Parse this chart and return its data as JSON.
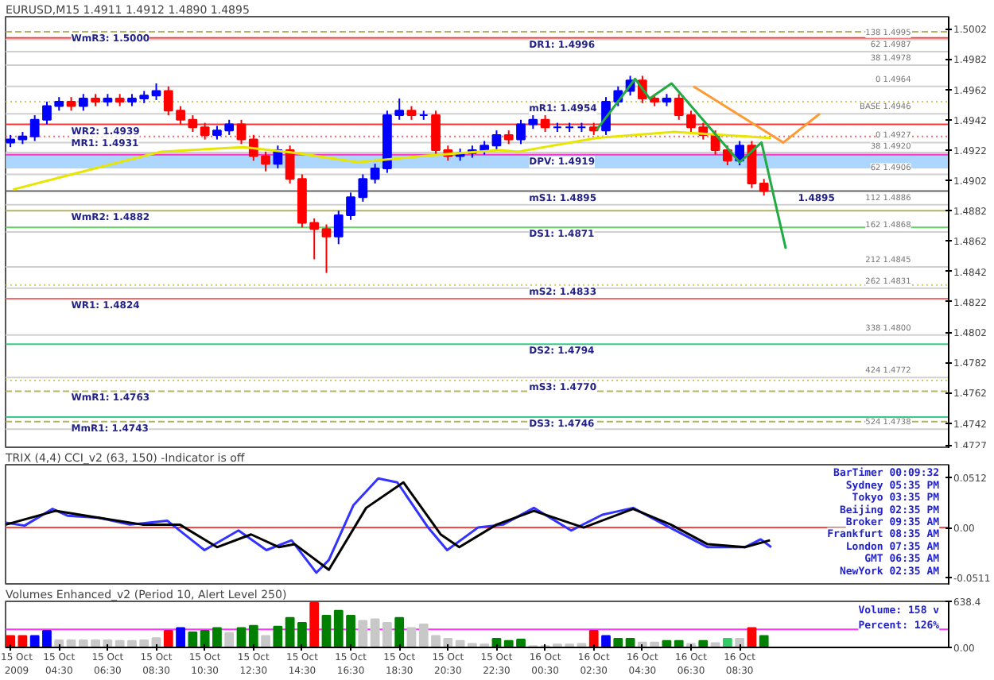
{
  "chart_data": [
    {
      "type": "candlestick",
      "title": "EURUSD,M15 1.4911 1.4912 1.4890 1.4895",
      "x": [
        "2009-10-15T02:30",
        "2009-10-15T03:00",
        "2009-10-15T03:30",
        "2009-10-15T04:00",
        "2009-10-15T04:30",
        "2009-10-15T05:00",
        "2009-10-15T05:30",
        "2009-10-15T06:00",
        "2009-10-15T06:30",
        "2009-10-15T07:00",
        "2009-10-15T07:30",
        "2009-10-15T08:00",
        "2009-10-15T08:30",
        "2009-10-15T09:00",
        "2009-10-15T09:30",
        "2009-10-15T10:00",
        "2009-10-15T10:30",
        "2009-10-15T11:00",
        "2009-10-15T11:30",
        "2009-10-15T12:00",
        "2009-10-15T12:30",
        "2009-10-15T13:00",
        "2009-10-15T13:30",
        "2009-10-15T14:00",
        "2009-10-15T14:30",
        "2009-10-15T15:00",
        "2009-10-15T15:30",
        "2009-10-15T16:00",
        "2009-10-15T16:30",
        "2009-10-15T17:00",
        "2009-10-15T17:30",
        "2009-10-15T18:00",
        "2009-10-15T18:30",
        "2009-10-15T19:00",
        "2009-10-15T19:30",
        "2009-10-15T20:00",
        "2009-10-15T20:30",
        "2009-10-15T21:00",
        "2009-10-15T21:30",
        "2009-10-15T22:00",
        "2009-10-15T22:30",
        "2009-10-15T23:00",
        "2009-10-15T23:30",
        "2009-10-16T00:00",
        "2009-10-16T00:30",
        "2009-10-16T01:00",
        "2009-10-16T01:30",
        "2009-10-16T02:00",
        "2009-10-16T02:30",
        "2009-10-16T03:00",
        "2009-10-16T03:30",
        "2009-10-16T04:00",
        "2009-10-16T04:30",
        "2009-10-16T05:00",
        "2009-10-16T05:30",
        "2009-10-16T06:00",
        "2009-10-16T06:30",
        "2009-10-16T07:00",
        "2009-10-16T07:30",
        "2009-10-16T08:00",
        "2009-10-16T08:30",
        "2009-10-16T09:00",
        "2009-10-16T09:30"
      ],
      "ohlc": [
        [
          1.4927,
          1.4932,
          1.4924,
          1.4929
        ],
        [
          1.4929,
          1.4934,
          1.4926,
          1.4931
        ],
        [
          1.4931,
          1.4945,
          1.4928,
          1.4942
        ],
        [
          1.4942,
          1.4954,
          1.4939,
          1.4951
        ],
        [
          1.4951,
          1.4957,
          1.4948,
          1.4954
        ],
        [
          1.4954,
          1.4957,
          1.4948,
          1.4951
        ],
        [
          1.4951,
          1.4959,
          1.4948,
          1.4956
        ],
        [
          1.4956,
          1.4959,
          1.4951,
          1.4954
        ],
        [
          1.4954,
          1.4959,
          1.4951,
          1.4956
        ],
        [
          1.4956,
          1.4959,
          1.4951,
          1.4954
        ],
        [
          1.4954,
          1.4959,
          1.4951,
          1.4956
        ],
        [
          1.4956,
          1.4961,
          1.4953,
          1.4958
        ],
        [
          1.4958,
          1.4966,
          1.4955,
          1.4961
        ],
        [
          1.4961,
          1.4964,
          1.4945,
          1.4948
        ],
        [
          1.4948,
          1.4951,
          1.4939,
          1.4942
        ],
        [
          1.4942,
          1.4945,
          1.4934,
          1.4937
        ],
        [
          1.4937,
          1.494,
          1.4929,
          1.4932
        ],
        [
          1.4932,
          1.4938,
          1.4929,
          1.4935
        ],
        [
          1.4935,
          1.4942,
          1.4932,
          1.4939
        ],
        [
          1.4939,
          1.4942,
          1.4926,
          1.4929
        ],
        [
          1.4929,
          1.4932,
          1.4915,
          1.4918
        ],
        [
          1.4918,
          1.4921,
          1.4908,
          1.4913
        ],
        [
          1.4913,
          1.4925,
          1.491,
          1.4922
        ],
        [
          1.4922,
          1.4925,
          1.49,
          1.4903
        ],
        [
          1.4903,
          1.4906,
          1.4871,
          1.4874
        ],
        [
          1.4874,
          1.4877,
          1.485,
          1.487
        ],
        [
          1.487,
          1.4873,
          1.4841,
          1.4865
        ],
        [
          1.4865,
          1.4882,
          1.486,
          1.4879
        ],
        [
          1.4879,
          1.4894,
          1.4876,
          1.4891
        ],
        [
          1.4891,
          1.4906,
          1.4888,
          1.4903
        ],
        [
          1.4903,
          1.4913,
          1.49,
          1.491
        ],
        [
          1.491,
          1.4948,
          1.4907,
          1.4945
        ],
        [
          1.4945,
          1.4956,
          1.4942,
          1.4948
        ],
        [
          1.4948,
          1.4951,
          1.4942,
          1.4945
        ],
        [
          1.4945,
          1.4948,
          1.4942,
          1.4945
        ],
        [
          1.4945,
          1.4948,
          1.4919,
          1.4922
        ],
        [
          1.4922,
          1.4925,
          1.4915,
          1.4918
        ],
        [
          1.4918,
          1.4923,
          1.4915,
          1.492
        ],
        [
          1.492,
          1.4925,
          1.4917,
          1.4922
        ],
        [
          1.4922,
          1.4928,
          1.4919,
          1.4925
        ],
        [
          1.4925,
          1.4935,
          1.4922,
          1.4932
        ],
        [
          1.4932,
          1.4935,
          1.4926,
          1.4929
        ],
        [
          1.4929,
          1.4942,
          1.4926,
          1.4939
        ],
        [
          1.4939,
          1.4945,
          1.4936,
          1.4942
        ],
        [
          1.4942,
          1.4945,
          1.4934,
          1.4937
        ],
        [
          1.4937,
          1.494,
          1.4934,
          1.4937
        ],
        [
          1.4937,
          1.494,
          1.4934,
          1.4937
        ],
        [
          1.4937,
          1.494,
          1.4934,
          1.4937
        ],
        [
          1.4937,
          1.494,
          1.4932,
          1.4935
        ],
        [
          1.4935,
          1.4957,
          1.4932,
          1.4954
        ],
        [
          1.4954,
          1.4964,
          1.4951,
          1.4961
        ],
        [
          1.4961,
          1.4971,
          1.4958,
          1.4968
        ],
        [
          1.4968,
          1.4971,
          1.4953,
          1.4956
        ],
        [
          1.4956,
          1.4959,
          1.4951,
          1.4954
        ],
        [
          1.4954,
          1.4959,
          1.4951,
          1.4956
        ],
        [
          1.4956,
          1.4959,
          1.4942,
          1.4945
        ],
        [
          1.4945,
          1.4948,
          1.4934,
          1.4937
        ],
        [
          1.4937,
          1.494,
          1.4929,
          1.4932
        ],
        [
          1.4932,
          1.4935,
          1.4919,
          1.4922
        ],
        [
          1.4922,
          1.4925,
          1.4912,
          1.4915
        ],
        [
          1.4915,
          1.4928,
          1.4912,
          1.4925
        ],
        [
          1.4925,
          1.4928,
          1.4897,
          1.49
        ],
        [
          1.49,
          1.4903,
          1.4892,
          1.4895
        ]
      ],
      "colors": [
        "#0000ff",
        "#0000ff",
        "#0000ff",
        "#0000ff",
        "#0000ff",
        "#ff0000",
        "#0000ff",
        "#ff0000",
        "#0000ff",
        "#ff0000",
        "#0000ff",
        "#0000ff",
        "#0000ff",
        "#ff0000",
        "#ff0000",
        "#ff0000",
        "#ff0000",
        "#0000ff",
        "#0000ff",
        "#ff0000",
        "#ff0000",
        "#ff0000",
        "#0000ff",
        "#ff0000",
        "#ff0000",
        "#ff0000",
        "#ff0000",
        "#0000ff",
        "#0000ff",
        "#0000ff",
        "#0000ff",
        "#0000ff",
        "#0000ff",
        "#ff0000",
        "#0000ff",
        "#ff0000",
        "#ff0000",
        "#0000ff",
        "#0000ff",
        "#0000ff",
        "#0000ff",
        "#ff0000",
        "#0000ff",
        "#0000ff",
        "#ff0000",
        "#0000ff",
        "#0000ff",
        "#0000ff",
        "#ff0000",
        "#0000ff",
        "#0000ff",
        "#0000ff",
        "#ff0000",
        "#ff0000",
        "#0000ff",
        "#ff0000",
        "#ff0000",
        "#ff0000",
        "#ff0000",
        "#ff0000",
        "#0000ff",
        "#ff0000",
        "#ff0000"
      ],
      "series": [
        {
          "type": "line",
          "color": "#e6e600",
          "x": [
            "2009-10-15T02:36",
            "2009-10-15T05:30",
            "2009-10-15T08:42",
            "2009-10-15T12:06",
            "2009-10-15T14:18",
            "2009-10-15T16:48",
            "2009-10-15T19:24",
            "2009-10-15T22:36",
            "2009-10-15T23:24",
            "2009-10-16T02:36",
            "2009-10-16T05:48",
            "2009-10-16T09:48"
          ],
          "values": [
            1.4896,
            1.4908,
            1.4921,
            1.4924,
            1.492,
            1.4914,
            1.4918,
            1.4922,
            1.4921,
            1.493,
            1.4934,
            1.493
          ]
        },
        {
          "type": "line",
          "color": "#22aa44",
          "x": [
            "2009-10-16T02:36",
            "2009-10-16T04:12",
            "2009-10-16T04:48",
            "2009-10-16T05:42",
            "2009-10-16T08:30",
            "2009-10-16T09:24",
            "2009-10-16T10:24"
          ],
          "values": [
            1.4935,
            1.4969,
            1.4956,
            1.4966,
            1.4914,
            1.4927,
            1.4857
          ]
        },
        {
          "type": "line",
          "color": "#ff9933",
          "x": [
            "2009-10-16T06:36",
            "2009-10-16T10:18",
            "2009-10-16T11:48"
          ],
          "values": [
            1.4964,
            1.4927,
            1.4946
          ]
        }
      ],
      "xlim": [
        "2009-10-15T02:18",
        "2009-10-16T17:06"
      ],
      "ylim": [
        1.4725,
        1.501
      ],
      "yticks": [
        1.5002,
        1.4982,
        1.4962,
        1.4942,
        1.4922,
        1.4902,
        1.4882,
        1.4862,
        1.4842,
        1.4822,
        1.4802,
        1.4782,
        1.4762,
        1.4742,
        1.4727
      ],
      "tick_labels": "y",
      "bands": [
        {
          "axis": "y",
          "from": 1.491,
          "to": 1.4921,
          "color": "#99ccff"
        }
      ],
      "ref_lines": [
        {
          "axis": "y",
          "value": 1.5,
          "color": "#b3b366",
          "line_style": "dashed"
        },
        {
          "axis": "y",
          "value": 1.4996,
          "color": "#ff3333",
          "line_style": "solid"
        },
        {
          "axis": "y",
          "value": 1.4954,
          "color": "#cccc66",
          "line_style": "dotted"
        },
        {
          "axis": "y",
          "value": 1.4939,
          "color": "#ff3333",
          "line_style": "solid"
        },
        {
          "axis": "y",
          "value": 1.4931,
          "color": "#ff6666",
          "line_style": "dotted"
        },
        {
          "axis": "y",
          "value": 1.4919,
          "color": "#ff33cc",
          "line_style": "solid"
        },
        {
          "axis": "y",
          "value": 1.4895,
          "color": "#666666",
          "line_style": "solid"
        },
        {
          "axis": "y",
          "value": 1.4882,
          "color": "#b3b366",
          "line_style": "solid"
        },
        {
          "axis": "y",
          "value": 1.4871,
          "color": "#66cc66",
          "line_style": "solid"
        },
        {
          "axis": "y",
          "value": 1.4833,
          "color": "#cccc66",
          "line_style": "dotted"
        },
        {
          "axis": "y",
          "value": 1.4824,
          "color": "#ff6666",
          "line_style": "solid"
        },
        {
          "axis": "y",
          "value": 1.4794,
          "color": "#33cc88",
          "line_style": "solid"
        },
        {
          "axis": "y",
          "value": 1.477,
          "color": "#cccc66",
          "line_style": "dotted"
        },
        {
          "axis": "y",
          "value": 1.4763,
          "color": "#b3b366",
          "line_style": "dashed"
        },
        {
          "axis": "y",
          "value": 1.4746,
          "color": "#33cc88",
          "line_style": "solid"
        },
        {
          "axis": "y",
          "value": 1.4743,
          "color": "#b3b366",
          "line_style": "dashed"
        },
        {
          "axis": "y",
          "value": 1.4995,
          "label": "138 1.4995",
          "color": "#d0d0d0",
          "line_style": "solid"
        },
        {
          "axis": "y",
          "value": 1.4987,
          "label": "62 1.4987",
          "color": "#d0d0d0",
          "line_style": "solid"
        },
        {
          "axis": "y",
          "value": 1.4978,
          "label": "38 1.4978",
          "color": "#d0d0d0",
          "line_style": "solid"
        },
        {
          "axis": "y",
          "value": 1.4964,
          "label": "0 1.4964",
          "color": "#d0d0d0",
          "line_style": "solid"
        },
        {
          "axis": "y",
          "value": 1.4946,
          "label": "BASE 1.4946",
          "color": "#d0d0d0",
          "line_style": "solid"
        },
        {
          "axis": "y",
          "value": 1.4927,
          "label": "0 1.4927",
          "color": "#d0d0d0",
          "line_style": "solid"
        },
        {
          "axis": "y",
          "value": 1.492,
          "label": "38 1.4920",
          "color": "#d0d0d0",
          "line_style": "solid"
        },
        {
          "axis": "y",
          "value": 1.4906,
          "label": "62 1.4906",
          "color": "#d0d0d0",
          "line_style": "solid"
        },
        {
          "axis": "y",
          "value": 1.4886,
          "label": "112 1.4886",
          "color": "#d0d0d0",
          "line_style": "solid"
        },
        {
          "axis": "y",
          "value": 1.4868,
          "label": "162 1.4868",
          "color": "#d0d0d0",
          "line_style": "solid"
        },
        {
          "axis": "y",
          "value": 1.4845,
          "label": "212 1.4845",
          "color": "#d0d0d0",
          "line_style": "solid"
        },
        {
          "axis": "y",
          "value": 1.4831,
          "label": "262 1.4831",
          "color": "#d0d0d0",
          "line_style": "solid"
        },
        {
          "axis": "y",
          "value": 1.48,
          "label": "338 1.4800",
          "color": "#d0d0d0",
          "line_style": "solid"
        },
        {
          "axis": "y",
          "value": 1.4772,
          "label": "424 1.4772",
          "color": "#d0d0d0",
          "line_style": "solid"
        },
        {
          "axis": "y",
          "value": 1.4738,
          "label": "524 1.4738",
          "color": "#d0d0d0",
          "line_style": "solid"
        }
      ],
      "annotations": [
        {
          "text": "WmR3: 1.5000",
          "x": "2009-10-15T05:00",
          "y": 1.5
        },
        {
          "text": "WR2: 1.4939",
          "x": "2009-10-15T05:00",
          "y": 1.4939
        },
        {
          "text": "MR1: 1.4931",
          "x": "2009-10-15T05:00",
          "y": 1.4931
        },
        {
          "text": "WmR2: 1.4882",
          "x": "2009-10-15T05:00",
          "y": 1.4882
        },
        {
          "text": "WR1: 1.4824",
          "x": "2009-10-15T05:00",
          "y": 1.4824
        },
        {
          "text": "WmR1: 1.4763",
          "x": "2009-10-15T05:00",
          "y": 1.4763
        },
        {
          "text": "MmR1: 1.4743",
          "x": "2009-10-15T05:00",
          "y": 1.4743
        },
        {
          "text": "DR1: 1.4996",
          "x": "2009-10-15T23:50",
          "y": 1.4996
        },
        {
          "text": "mR1: 1.4954",
          "x": "2009-10-15T23:50",
          "y": 1.4954
        },
        {
          "text": "DPV: 1.4919",
          "x": "2009-10-15T23:50",
          "y": 1.4919
        },
        {
          "text": "mS1: 1.4895",
          "x": "2009-10-15T23:50",
          "y": 1.4895
        },
        {
          "text": "DS1: 1.4871",
          "x": "2009-10-15T23:50",
          "y": 1.4871
        },
        {
          "text": "mS2: 1.4833",
          "x": "2009-10-15T23:50",
          "y": 1.4833
        },
        {
          "text": "DS2: 1.4794",
          "x": "2009-10-15T23:50",
          "y": 1.4794
        },
        {
          "text": "mS3: 1.4770",
          "x": "2009-10-15T23:50",
          "y": 1.477
        },
        {
          "text": "DS3: 1.4746",
          "x": "2009-10-15T23:50",
          "y": 1.4746
        },
        {
          "text": "1.4895",
          "x": "2009-10-16T10:54",
          "y": 1.4895
        }
      ]
    },
    {
      "type": "line",
      "title": "TRIX (4,4)   CCI_v2 (63, 150)  -Indicator is off",
      "series": [
        {
          "color": "#3333ff",
          "x": [
            "2009-10-15T02:19",
            "2009-10-15T03:05",
            "2009-10-15T04:14",
            "2009-10-15T04:52",
            "2009-10-15T06:08",
            "2009-10-15T07:25",
            "2009-10-15T08:57",
            "2009-10-15T10:29",
            "2009-10-15T11:53",
            "2009-10-15T13:02",
            "2009-10-15T14:04",
            "2009-10-15T15:05",
            "2009-10-15T15:36",
            "2009-10-15T16:37",
            "2009-10-15T17:38",
            "2009-10-15T18:25",
            "2009-10-15T19:41",
            "2009-10-15T20:28",
            "2009-10-15T21:44",
            "2009-10-15T22:46",
            "2009-10-16T00:02",
            "2009-10-16T01:34",
            "2009-10-16T02:51",
            "2009-10-16T04:07",
            "2009-10-16T05:24",
            "2009-10-16T07:11",
            "2009-10-16T08:43",
            "2009-10-16T09:22",
            "2009-10-16T09:48"
          ],
          "values": [
            0.005,
            0.002,
            0.019,
            0.012,
            0.01,
            0.003,
            0.007,
            -0.023,
            -0.003,
            -0.023,
            -0.013,
            -0.046,
            -0.033,
            0.023,
            0.05,
            0.046,
            0,
            -0.023,
            0,
            0.003,
            0.02,
            -0.003,
            0.013,
            0.02,
            0.003,
            -0.02,
            -0.02,
            -0.012,
            -0.02
          ]
        },
        {
          "color": "#000000",
          "x": [
            "2009-10-15T02:19",
            "2009-10-15T04:21",
            "2009-10-15T06:08",
            "2009-10-15T07:56",
            "2009-10-15T09:28",
            "2009-10-15T11:00",
            "2009-10-15T12:24",
            "2009-10-15T13:33",
            "2009-10-15T14:12",
            "2009-10-15T15:36",
            "2009-10-15T17:08",
            "2009-10-15T18:40",
            "2009-10-15T20:12",
            "2009-10-15T20:58",
            "2009-10-15T22:30",
            "2009-10-16T00:02",
            "2009-10-16T02:05",
            "2009-10-16T04:07",
            "2009-10-16T05:40",
            "2009-10-16T07:11",
            "2009-10-16T08:43",
            "2009-10-16T09:45"
          ],
          "values": [
            0.003,
            0.017,
            0.01,
            0.003,
            0.003,
            -0.02,
            -0.007,
            -0.02,
            -0.017,
            -0.043,
            0.02,
            0.046,
            -0.007,
            -0.02,
            0.003,
            0.017,
            0,
            0.019,
            0.003,
            -0.017,
            -0.02,
            -0.013
          ]
        }
      ],
      "xlim": [
        "2009-10-15T02:18",
        "2009-10-16T17:06"
      ],
      "ylim": [
        -0.059,
        0.064
      ],
      "yticks": [
        0.0512,
        {
          "value": 0,
          "label": "0.00"
        },
        -0.0511
      ],
      "tick_labels": "y",
      "ref_lines": [
        {
          "axis": "y",
          "value": 0,
          "color": "#ff4444",
          "line_style": "solid"
        }
      ],
      "annotations": [
        "BarTimer 00:09:32",
        "Sydney 05:35 PM",
        "Tokyo 03:35 PM",
        "Beijing 02:35 PM",
        "Broker 09:35 AM",
        "Frankfurt 08:35 AM",
        "London 07:35 AM",
        "GMT 06:35 AM",
        "NewYork 02:35 AM"
      ]
    },
    {
      "type": "bar",
      "title": "Volumes Enhanced_v2 (Period 10, Alert Level 250)",
      "x": [
        "2009-10-15T02:30",
        "2009-10-15T03:00",
        "2009-10-15T03:30",
        "2009-10-15T04:00",
        "2009-10-15T04:30",
        "2009-10-15T05:00",
        "2009-10-15T05:30",
        "2009-10-15T06:00",
        "2009-10-15T06:30",
        "2009-10-15T07:00",
        "2009-10-15T07:30",
        "2009-10-15T08:00",
        "2009-10-15T08:30",
        "2009-10-15T09:00",
        "2009-10-15T09:30",
        "2009-10-15T10:00",
        "2009-10-15T10:30",
        "2009-10-15T11:00",
        "2009-10-15T11:30",
        "2009-10-15T12:00",
        "2009-10-15T12:30",
        "2009-10-15T13:00",
        "2009-10-15T13:30",
        "2009-10-15T14:00",
        "2009-10-15T14:30",
        "2009-10-15T15:00",
        "2009-10-15T15:30",
        "2009-10-15T16:00",
        "2009-10-15T16:30",
        "2009-10-15T17:00",
        "2009-10-15T17:30",
        "2009-10-15T18:00",
        "2009-10-15T18:30",
        "2009-10-15T19:00",
        "2009-10-15T19:30",
        "2009-10-15T20:00",
        "2009-10-15T20:30",
        "2009-10-15T21:00",
        "2009-10-15T21:30",
        "2009-10-15T22:00",
        "2009-10-15T22:30",
        "2009-10-15T23:00",
        "2009-10-15T23:30",
        "2009-10-16T00:00",
        "2009-10-16T00:30",
        "2009-10-16T01:00",
        "2009-10-16T01:30",
        "2009-10-16T02:00",
        "2009-10-16T02:30",
        "2009-10-16T03:00",
        "2009-10-16T03:30",
        "2009-10-16T04:00",
        "2009-10-16T04:30",
        "2009-10-16T05:00",
        "2009-10-16T05:30",
        "2009-10-16T06:00",
        "2009-10-16T06:30",
        "2009-10-16T07:00",
        "2009-10-16T07:30",
        "2009-10-16T08:00",
        "2009-10-16T08:30",
        "2009-10-16T09:00",
        "2009-10-16T09:30"
      ],
      "values": [
        160,
        160,
        160,
        230,
        100,
        100,
        100,
        100,
        100,
        90,
        90,
        100,
        130,
        230,
        270,
        210,
        230,
        270,
        200,
        270,
        300,
        160,
        290,
        410,
        340,
        620,
        440,
        510,
        440,
        370,
        390,
        340,
        410,
        270,
        320,
        160,
        120,
        90,
        50,
        40,
        120,
        90,
        110,
        20,
        20,
        40,
        40,
        50,
        230,
        160,
        120,
        120,
        70,
        70,
        90,
        90,
        50,
        90,
        60,
        120,
        120,
        270,
        160
      ],
      "colors": [
        "#ff0000",
        "#ff0000",
        "#0000ff",
        "#0000ff",
        "#c8c8c8",
        "#c8c8c8",
        "#c8c8c8",
        "#c8c8c8",
        "#c8c8c8",
        "#c8c8c8",
        "#c8c8c8",
        "#c8c8c8",
        "#c8c8c8",
        "#ff0000",
        "#0000ff",
        "#008000",
        "#008000",
        "#008000",
        "#c8c8c8",
        "#008000",
        "#008000",
        "#c8c8c8",
        "#008000",
        "#008000",
        "#008000",
        "#ff0000",
        "#008000",
        "#008000",
        "#008000",
        "#c8c8c8",
        "#c8c8c8",
        "#c8c8c8",
        "#008000",
        "#c8c8c8",
        "#c8c8c8",
        "#c8c8c8",
        "#c8c8c8",
        "#c8c8c8",
        "#c8c8c8",
        "#c8c8c8",
        "#008000",
        "#008000",
        "#008000",
        "#c8c8c8",
        "#c8c8c8",
        "#c8c8c8",
        "#c8c8c8",
        "#c8c8c8",
        "#ff0000",
        "#0000ff",
        "#008000",
        "#008000",
        "#c8c8c8",
        "#c8c8c8",
        "#008000",
        "#008000",
        "#c8c8c8",
        "#008000",
        "#c8c8c8",
        "#33cc66",
        "#c8c8c8",
        "#ff0000",
        "#008000"
      ],
      "xlim": [
        "2009-10-15T02:18",
        "2009-10-16T17:06"
      ],
      "xticks": [
        {
          "value": "2009-10-15T02:30",
          "label": "15 Oct 2009"
        },
        {
          "value": "2009-10-15T04:30",
          "label": "15 Oct 04:30"
        },
        {
          "value": "2009-10-15T06:30",
          "label": "15 Oct 06:30"
        },
        {
          "value": "2009-10-15T08:30",
          "label": "15 Oct 08:30"
        },
        {
          "value": "2009-10-15T10:30",
          "label": "15 Oct 10:30"
        },
        {
          "value": "2009-10-15T12:30",
          "label": "15 Oct 12:30"
        },
        {
          "value": "2009-10-15T14:30",
          "label": "15 Oct 14:30"
        },
        {
          "value": "2009-10-15T16:30",
          "label": "15 Oct 16:30"
        },
        {
          "value": "2009-10-15T18:30",
          "label": "15 Oct 18:30"
        },
        {
          "value": "2009-10-15T20:30",
          "label": "15 Oct 20:30"
        },
        {
          "value": "2009-10-15T22:30",
          "label": "15 Oct 22:30"
        },
        {
          "value": "2009-10-16T00:30",
          "label": "16 Oct 00:30"
        },
        {
          "value": "2009-10-16T02:30",
          "label": "16 Oct 02:30"
        },
        {
          "value": "2009-10-16T04:30",
          "label": "16 Oct 04:30"
        },
        {
          "value": "2009-10-16T06:30",
          "label": "16 Oct 06:30"
        },
        {
          "value": "2009-10-16T08:30",
          "label": "16 Oct 08:30"
        }
      ],
      "ylim": [
        0,
        638.4
      ],
      "yticks": [
        638.4,
        {
          "value": 0,
          "label": "0.00"
        }
      ],
      "ref_lines": [
        {
          "axis": "y",
          "value": 250,
          "color": "#ff33ff",
          "line_style": "solid"
        }
      ],
      "annotations": [
        "Volume: 158 v",
        "Percent: 126%"
      ]
    }
  ]
}
